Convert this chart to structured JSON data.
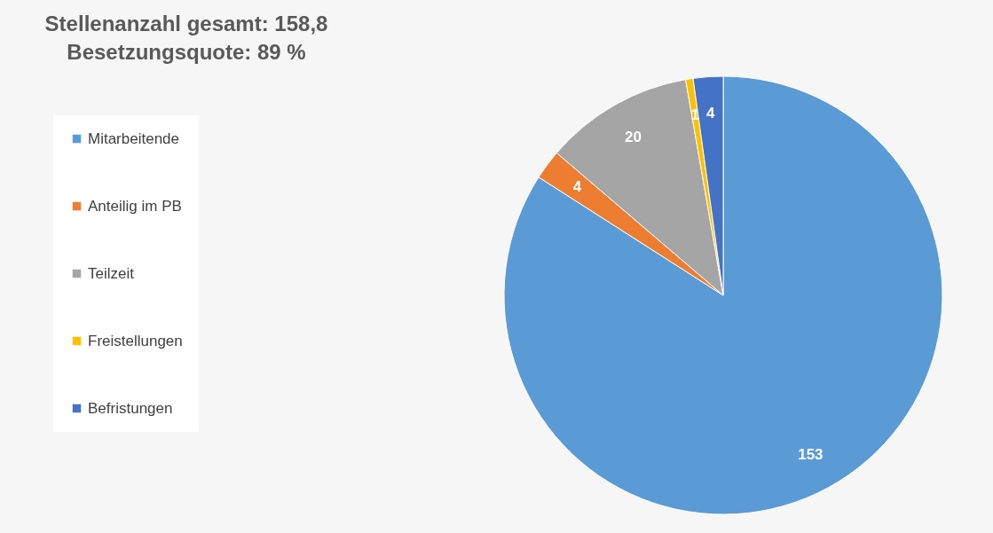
{
  "chart_data": {
    "type": "pie",
    "title": [
      "Stellenanzahl gesamt: 158,8",
      "Besetzungsquote: 89 %"
    ],
    "categories": [
      "Mitarbeitende",
      "Anteilig im PB",
      "Teilzeit",
      "Freistellungen",
      "Befristungen"
    ],
    "values": [
      153,
      4,
      20,
      1,
      4
    ],
    "colors": [
      "#5b9bd5",
      "#ed7d31",
      "#a5a5a5",
      "#ffc000",
      "#4472c4"
    ],
    "data_labels": true,
    "legend": "left"
  }
}
